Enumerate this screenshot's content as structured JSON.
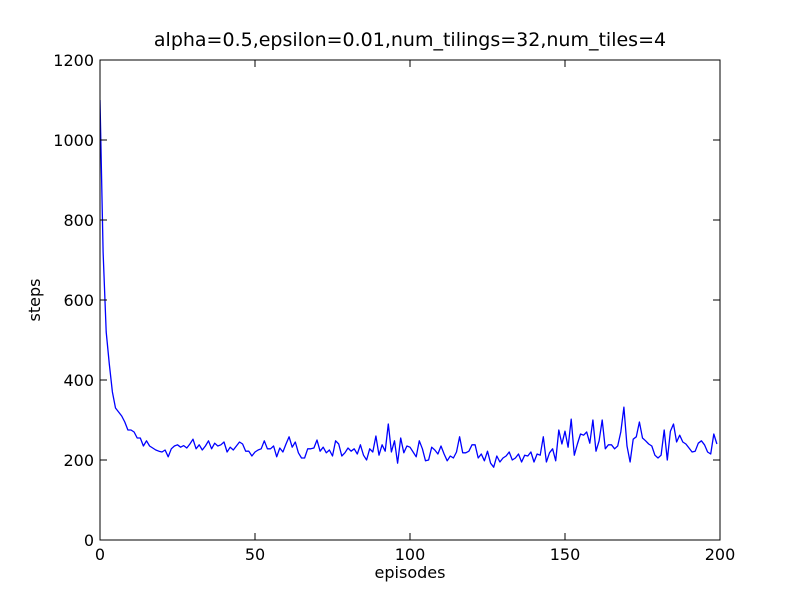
{
  "chart_data": {
    "type": "line",
    "title": "alpha=0.5,epsilon=0.01,num_tilings=32,num_tiles=4",
    "x_label": "episodes",
    "y_label": "steps",
    "xlim": [
      0,
      200
    ],
    "ylim": [
      0,
      1200
    ],
    "xticks": [
      0,
      50,
      100,
      150,
      200
    ],
    "yticks": [
      0,
      200,
      400,
      600,
      800,
      1000,
      1200
    ],
    "grid": false,
    "x": [
      0,
      1,
      2,
      3,
      4,
      5,
      6,
      7,
      8,
      9,
      10,
      11,
      12,
      13,
      14,
      15,
      16,
      17,
      18,
      19,
      20,
      21,
      22,
      23,
      24,
      25,
      26,
      27,
      28,
      29,
      30,
      31,
      32,
      33,
      34,
      35,
      36,
      37,
      38,
      39,
      40,
      41,
      42,
      43,
      44,
      45,
      46,
      47,
      48,
      49,
      50,
      51,
      52,
      53,
      54,
      55,
      56,
      57,
      58,
      59,
      60,
      61,
      62,
      63,
      64,
      65,
      66,
      67,
      68,
      69,
      70,
      71,
      72,
      73,
      74,
      75,
      76,
      77,
      78,
      79,
      80,
      81,
      82,
      83,
      84,
      85,
      86,
      87,
      88,
      89,
      90,
      91,
      92,
      93,
      94,
      95,
      96,
      97,
      98,
      99,
      100,
      101,
      102,
      103,
      104,
      105,
      106,
      107,
      108,
      109,
      110,
      111,
      112,
      113,
      114,
      115,
      116,
      117,
      118,
      119,
      120,
      121,
      122,
      123,
      124,
      125,
      126,
      127,
      128,
      129,
      130,
      131,
      132,
      133,
      134,
      135,
      136,
      137,
      138,
      139,
      140,
      141,
      142,
      143,
      144,
      145,
      146,
      147,
      148,
      149,
      150,
      151,
      152,
      153,
      154,
      155,
      156,
      157,
      158,
      159,
      160,
      161,
      162,
      163,
      164,
      165,
      166,
      167,
      168,
      169,
      170,
      171,
      172,
      173,
      174,
      175,
      176,
      177,
      178,
      179,
      180,
      181,
      182,
      183,
      184,
      185,
      186,
      187,
      188,
      189,
      190,
      191,
      192,
      193,
      194,
      195,
      196,
      197,
      198,
      199
    ],
    "series": [
      {
        "color": "#0000ff",
        "values": [
          1100,
          720,
          520,
          440,
          370,
          330,
          320,
          310,
          295,
          275,
          275,
          270,
          255,
          255,
          235,
          248,
          235,
          230,
          225,
          222,
          220,
          225,
          208,
          228,
          235,
          238,
          232,
          236,
          230,
          240,
          252,
          228,
          238,
          225,
          235,
          248,
          228,
          242,
          235,
          238,
          245,
          220,
          232,
          225,
          235,
          245,
          240,
          222,
          222,
          210,
          220,
          225,
          228,
          248,
          228,
          228,
          235,
          208,
          230,
          220,
          240,
          258,
          232,
          245,
          218,
          205,
          205,
          228,
          228,
          230,
          250,
          222,
          232,
          218,
          225,
          210,
          248,
          240,
          210,
          218,
          230,
          222,
          228,
          215,
          238,
          212,
          200,
          228,
          220,
          260,
          212,
          238,
          222,
          290,
          220,
          248,
          192,
          255,
          218,
          235,
          232,
          220,
          208,
          248,
          228,
          198,
          200,
          232,
          225,
          215,
          235,
          215,
          198,
          210,
          205,
          220,
          258,
          218,
          218,
          222,
          238,
          238,
          205,
          215,
          198,
          222,
          192,
          182,
          210,
          195,
          205,
          210,
          220,
          200,
          205,
          215,
          195,
          212,
          210,
          220,
          195,
          215,
          212,
          258,
          195,
          218,
          228,
          198,
          275,
          240,
          272,
          232,
          302,
          212,
          240,
          265,
          262,
          270,
          242,
          300,
          222,
          248,
          300,
          228,
          238,
          238,
          228,
          235,
          270,
          332,
          235,
          195,
          252,
          258,
          295,
          255,
          248,
          240,
          235,
          212,
          205,
          212,
          275,
          200,
          272,
          290,
          245,
          262,
          245,
          240,
          230,
          220,
          222,
          242,
          248,
          238,
          220,
          215,
          265,
          240
        ]
      }
    ]
  }
}
